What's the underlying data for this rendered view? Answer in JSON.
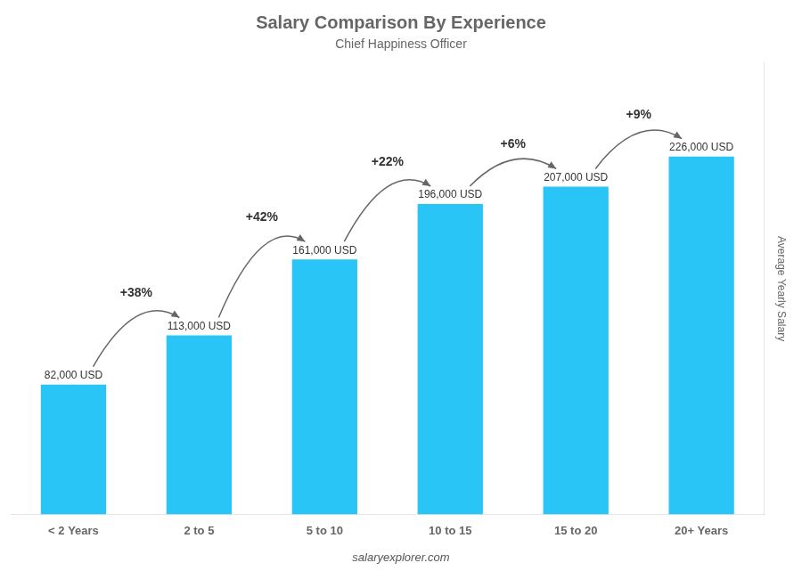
{
  "chart_data": {
    "type": "bar",
    "title": "Salary Comparison By Experience",
    "subtitle": "Chief Happiness Officer",
    "categories": [
      "< 2 Years",
      "2 to 5",
      "5 to 10",
      "10 to 15",
      "15 to 20",
      "20+ Years"
    ],
    "values": [
      82000,
      113000,
      161000,
      196000,
      207000,
      226000
    ],
    "value_labels": [
      "82,000 USD",
      "113,000 USD",
      "161,000 USD",
      "196,000 USD",
      "207,000 USD",
      "226,000 USD"
    ],
    "data_labels": true,
    "color": "#29c5f6",
    "ylabel": "Average Yearly Salary",
    "ylim": [
      0,
      285000
    ],
    "yticks": [],
    "tick_labels": "x",
    "grid": false,
    "annotations": [
      "+38%",
      "+42%",
      "+22%",
      "+6%",
      "+9%"
    ],
    "footer": "salaryexplorer.com"
  }
}
